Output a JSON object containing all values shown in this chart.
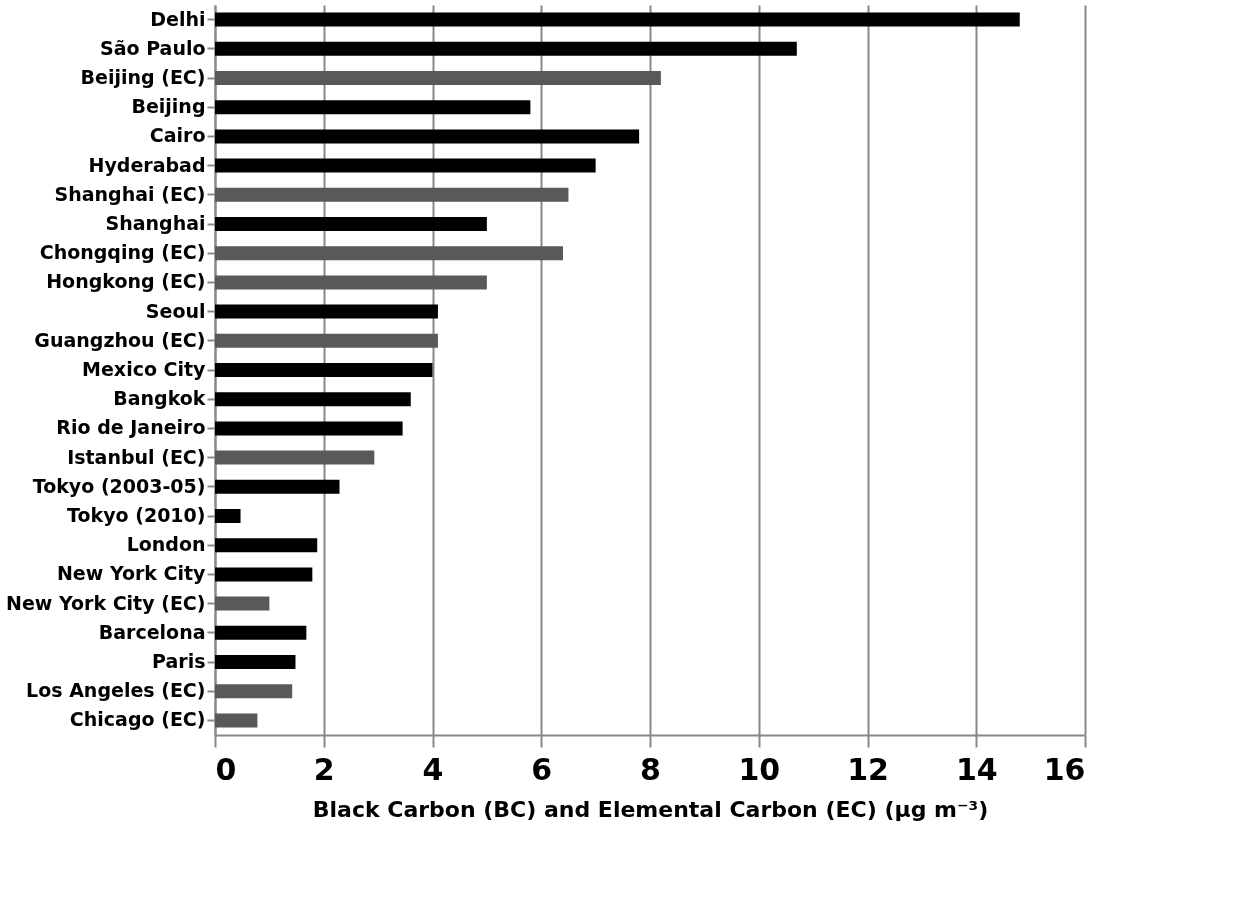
{
  "chart_data": {
    "type": "bar",
    "orientation": "horizontal",
    "xlabel": "Black Carbon (BC) and Elemental Carbon (EC) (μg m⁻³)",
    "categories": [
      "Delhi",
      "São Paulo",
      "Beijing  (EC)",
      "Beijing",
      "Cairo",
      "Hyderabad",
      "Shanghai  (EC)",
      "Shanghai",
      "Chongqing  (EC)",
      "Hongkong (EC)",
      "Seoul",
      "Guangzhou  (EC)",
      "Mexico City",
      "Bangkok",
      "Rio de Janeiro",
      "Istanbul (EC)",
      "Tokyo (2003-05)",
      "Tokyo (2010)",
      "London",
      "New York City",
      "New York City (EC)",
      "Barcelona",
      "Paris",
      "Los Angeles (EC)",
      "Chicago (EC)"
    ],
    "values": [
      14.8,
      10.7,
      8.2,
      5.8,
      7.8,
      7.0,
      6.5,
      5.0,
      6.4,
      5.0,
      4.1,
      4.1,
      4.0,
      3.6,
      3.45,
      2.93,
      2.29,
      0.47,
      1.88,
      1.79,
      1.0,
      1.68,
      1.48,
      1.42,
      0.78
    ],
    "colors": [
      "#000000",
      "#000000",
      "#595959",
      "#000000",
      "#000000",
      "#000000",
      "#595959",
      "#000000",
      "#595959",
      "#595959",
      "#000000",
      "#595959",
      "#000000",
      "#000000",
      "#000000",
      "#595959",
      "#000000",
      "#000000",
      "#000000",
      "#000000",
      "#595959",
      "#000000",
      "#000000",
      "#595959",
      "#595959"
    ],
    "xlim": [
      0,
      16
    ],
    "xticks": [
      0,
      2,
      4,
      6,
      8,
      10,
      12,
      14,
      16
    ],
    "grid": "x"
  }
}
